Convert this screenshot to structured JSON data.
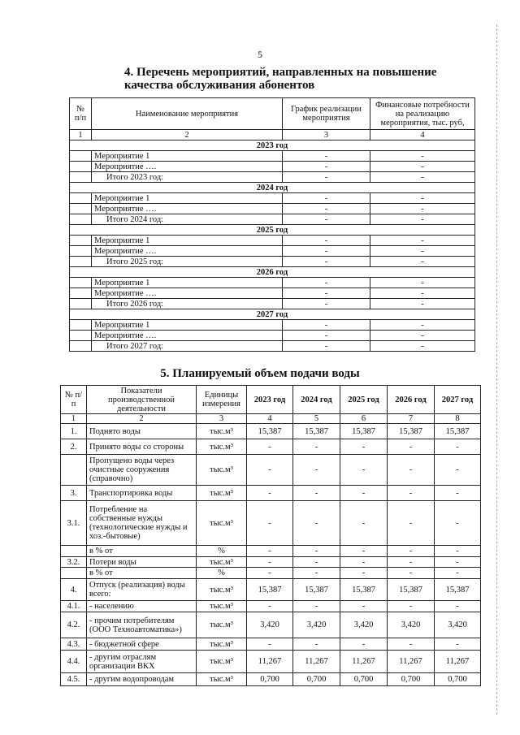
{
  "page_number": "5",
  "section4": {
    "title": "4.  Перечень мероприятий, направленных на повышение качества обслуживания абонентов",
    "headers": [
      "№ п/п",
      "Наименование мероприятия",
      "График реализации мероприятия",
      "Финансовые потребности на реализацию мероприятия, тыс. руб,"
    ],
    "col_numbers": [
      "1",
      "2",
      "3",
      "4"
    ],
    "years": [
      {
        "year": "2023 год",
        "rows": [
          [
            "Мероприятие 1",
            "-",
            "-"
          ],
          [
            "Мероприятие ….",
            "-",
            "-"
          ],
          [
            "Итого 2023 год:",
            "-",
            "-"
          ]
        ]
      },
      {
        "year": "2024 год",
        "rows": [
          [
            "Мероприятие 1",
            "-",
            "-"
          ],
          [
            "Мероприятие ….",
            "-",
            "-"
          ],
          [
            "Итого 2024 год:",
            "-",
            "-"
          ]
        ]
      },
      {
        "year": "2025 год",
        "rows": [
          [
            "Мероприятие 1",
            "-",
            "-"
          ],
          [
            "Мероприятие ….",
            "-",
            "-"
          ],
          [
            "Итого 2025 год:",
            "-",
            "-"
          ]
        ]
      },
      {
        "year": "2026 год",
        "rows": [
          [
            "Мероприятие 1",
            "-",
            "-"
          ],
          [
            "Мероприятие ….",
            "-",
            "-"
          ],
          [
            "Итого 2026 год:",
            "-",
            "-"
          ]
        ]
      },
      {
        "year": "2027 год",
        "rows": [
          [
            "Мероприятие 1",
            "-",
            "-"
          ],
          [
            "Мероприятие ….",
            "-",
            "-"
          ],
          [
            "Итого 2027 год:",
            "-",
            "-"
          ]
        ]
      }
    ]
  },
  "section5": {
    "title": "5.  Планируемый объем подачи воды",
    "headers": [
      "№ п/п",
      "Показатели производственной деятельности",
      "Единицы измерения",
      "2023 год",
      "2024 год",
      "2025 год",
      "2026 год",
      "2027 год"
    ],
    "col_numbers": [
      "1",
      "2",
      "3",
      "4",
      "5",
      "6",
      "7",
      "8"
    ],
    "rows": [
      [
        "1.",
        "Поднято воды",
        "тыс.м³",
        "15,387",
        "15,387",
        "15,387",
        "15,387",
        "15,387"
      ],
      [
        "2.",
        "Принято воды со стороны",
        "тыс.м³",
        "-",
        "-",
        "-",
        "-",
        "-"
      ],
      [
        "",
        "Пропущено воды через очистные сооружения (справочно)",
        "тыс.м³",
        "-",
        "-",
        "-",
        "-",
        "-"
      ],
      [
        "3.",
        "Транспортировка воды",
        "тыс.м³",
        "-",
        "-",
        "-",
        "-",
        "-"
      ],
      [
        "3.1.",
        "Потребление на собственные нужды (технологические нужды и хоз.-бытовые)",
        "тыс.м³",
        "-",
        "-",
        "-",
        "-",
        "-"
      ],
      [
        "",
        "в % от",
        "%",
        "-",
        "-",
        "-",
        "-",
        "-"
      ],
      [
        "3.2.",
        "Потери воды",
        "тыс.м³",
        "-",
        "-",
        "-",
        "-",
        "-"
      ],
      [
        "",
        "в % от",
        "%",
        "-",
        "-",
        "-",
        "-",
        "-"
      ],
      [
        "4.",
        "Отпуск (реализация) воды всего:",
        "тыс.м³",
        "15,387",
        "15,387",
        "15,387",
        "15,387",
        "15,387"
      ],
      [
        "4.1.",
        "- населению",
        "тыс.м³",
        "-",
        "-",
        "-",
        "-",
        "-"
      ],
      [
        "4.2.",
        "- прочим потребителям (ООО Техноавтоматика»)",
        "тыс.м³",
        "3,420",
        "3,420",
        "3,420",
        "3,420",
        "3,420"
      ],
      [
        "4.3.",
        "- бюджетной сфере",
        "тыс.м³",
        "-",
        "-",
        "-",
        "-",
        "-"
      ],
      [
        "4.4.",
        "- другим отраслям организации ВКХ",
        "тыс.м³",
        "11,267",
        "11,267",
        "11,267",
        "11,267",
        "11,267"
      ],
      [
        "4.5.",
        "- другим водопроводам",
        "тыс.м³",
        "0,700",
        "0,700",
        "0,700",
        "0,700",
        "0,700"
      ]
    ]
  }
}
